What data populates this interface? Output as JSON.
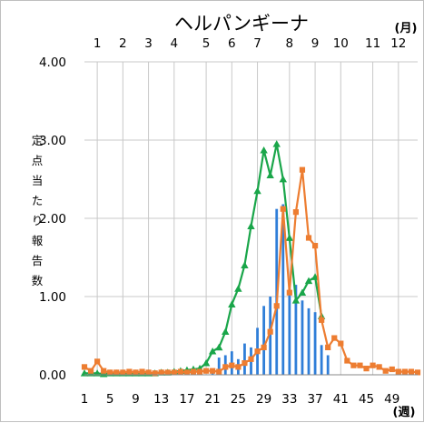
{
  "chart_data": {
    "type": "line",
    "title": "ヘルパンギーナ",
    "ylabel": "定点当たり報告数",
    "xlabel": "(週)",
    "top_axis_label": "(月)",
    "ylim": [
      0,
      4
    ],
    "xlim": [
      1,
      53
    ],
    "y_ticks": [
      "0.00",
      "1.00",
      "2.00",
      "3.00",
      "4.00"
    ],
    "y_tick_values": [
      0,
      1,
      2,
      3,
      4
    ],
    "x_ticks": [
      "1",
      "5",
      "9",
      "13",
      "17",
      "21",
      "25",
      "29",
      "33",
      "37",
      "41",
      "45",
      "49"
    ],
    "x_tick_values": [
      1,
      5,
      9,
      13,
      17,
      21,
      25,
      29,
      33,
      37,
      41,
      45,
      49
    ],
    "month_ticks": [
      "1",
      "2",
      "3",
      "4",
      "5",
      "6",
      "7",
      "8",
      "9",
      "10",
      "11",
      "12"
    ],
    "month_tick_weeks": [
      3,
      7,
      11,
      15,
      20,
      24,
      28,
      33,
      37,
      41,
      46,
      50
    ],
    "grid": true,
    "series": [
      {
        "style": "bar",
        "color": "#2f7ed8",
        "x": [
          21,
          22,
          23,
          24,
          25,
          26,
          27,
          28,
          29,
          30,
          31,
          32,
          33,
          34,
          35,
          36,
          37,
          38,
          39
        ],
        "values": [
          0.08,
          0.22,
          0.25,
          0.3,
          0.2,
          0.4,
          0.35,
          0.6,
          0.88,
          1.0,
          2.12,
          2.18,
          1.1,
          1.15,
          0.95,
          0.85,
          0.8,
          0.38,
          0.25
        ]
      },
      {
        "style": "line",
        "color": "#1aa64a",
        "marker": "triangle",
        "x": [
          1,
          2,
          3,
          4,
          5,
          6,
          7,
          8,
          9,
          10,
          11,
          12,
          13,
          14,
          15,
          16,
          17,
          18,
          19,
          20,
          21,
          22,
          23,
          24,
          25,
          26,
          27,
          28,
          29,
          30,
          31,
          32,
          33,
          34,
          35,
          36,
          37,
          38
        ],
        "values": [
          0.02,
          0.02,
          0.02,
          0.01,
          0.02,
          0.02,
          0.02,
          0.02,
          0.02,
          0.02,
          0.02,
          0.02,
          0.03,
          0.03,
          0.04,
          0.05,
          0.06,
          0.07,
          0.08,
          0.15,
          0.3,
          0.35,
          0.55,
          0.9,
          1.1,
          1.4,
          1.9,
          2.35,
          2.87,
          2.55,
          2.95,
          2.5,
          1.75,
          0.95,
          1.05,
          1.2,
          1.25,
          0.75
        ]
      },
      {
        "style": "line",
        "color": "#ed7d31",
        "marker": "square",
        "x": [
          1,
          2,
          3,
          4,
          5,
          6,
          7,
          8,
          9,
          10,
          11,
          12,
          13,
          14,
          15,
          16,
          17,
          18,
          19,
          20,
          21,
          22,
          23,
          24,
          25,
          26,
          27,
          28,
          29,
          30,
          31,
          32,
          33,
          34,
          35,
          36,
          37,
          38,
          39,
          40,
          41,
          42,
          43,
          44,
          45,
          46,
          47,
          48,
          49,
          50,
          51,
          52,
          53
        ],
        "values": [
          0.1,
          0.05,
          0.17,
          0.05,
          0.03,
          0.03,
          0.03,
          0.04,
          0.03,
          0.04,
          0.03,
          0.02,
          0.03,
          0.03,
          0.03,
          0.04,
          0.03,
          0.04,
          0.04,
          0.05,
          0.05,
          0.04,
          0.1,
          0.12,
          0.1,
          0.15,
          0.2,
          0.3,
          0.35,
          0.55,
          0.88,
          2.12,
          1.05,
          2.08,
          2.62,
          1.75,
          1.65,
          0.7,
          0.35,
          0.47,
          0.4,
          0.18,
          0.12,
          0.12,
          0.08,
          0.12,
          0.1,
          0.05,
          0.07,
          0.04,
          0.04,
          0.04,
          0.03
        ]
      }
    ]
  }
}
